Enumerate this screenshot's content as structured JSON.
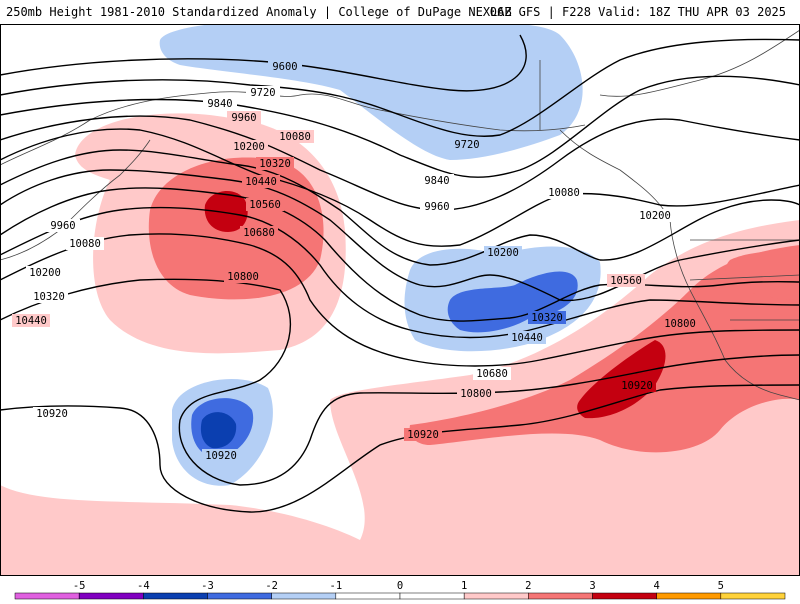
{
  "header": {
    "left_title": "250mb Height 1981-2010 Standardized Anomaly | College of DuPage NEXLAB",
    "right_title": "06Z GFS | F228 Valid: 18Z THU APR 03 2025"
  },
  "contours": {
    "labels": [
      "9600",
      "9720",
      "9840",
      "9960",
      "10080",
      "10200",
      "10320",
      "10440",
      "10560",
      "10680",
      "10800",
      "10920",
      "9720",
      "9840",
      "9960",
      "10080",
      "10200",
      "10200",
      "10320",
      "10440",
      "10560",
      "10680",
      "10800",
      "10800",
      "10920",
      "10920",
      "10920",
      "9960",
      "10080",
      "10200",
      "10320",
      "10440"
    ]
  },
  "colorbar": {
    "ticks": [
      "-5",
      "-4",
      "-3",
      "-2",
      "-1",
      "0",
      "1",
      "2",
      "3",
      "4",
      "5"
    ],
    "colors": [
      "#e060e0",
      "#8000c0",
      "#0b3fb0",
      "#3f6be0",
      "#b4cff5",
      "#ffffff",
      "#ffc9c9",
      "#f57575",
      "#c40010",
      "#ff9a00",
      "#ffd23a"
    ]
  }
}
